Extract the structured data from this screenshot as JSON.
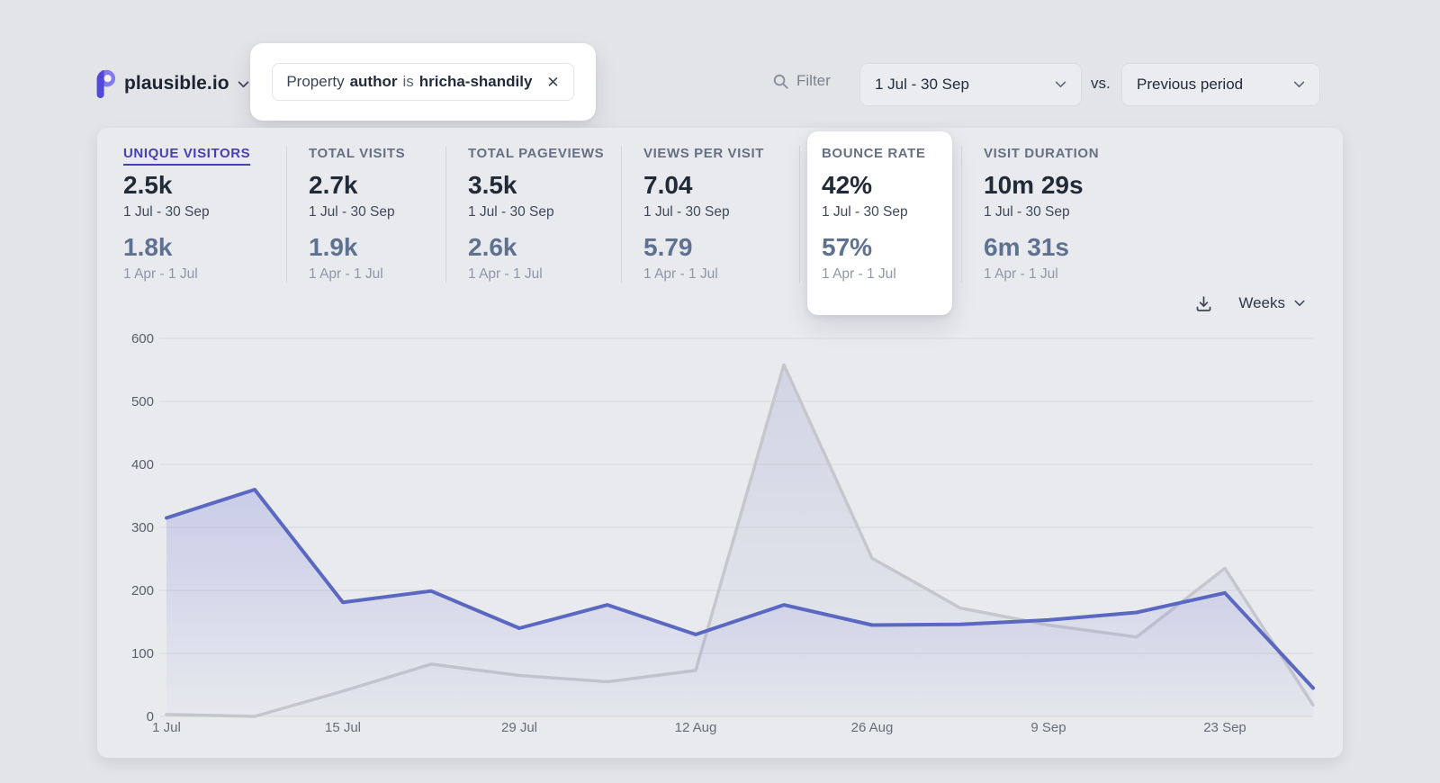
{
  "colors": {
    "accent": "#4740b5",
    "current_line": "#5b68c1",
    "previous_line": "#c6c7cd",
    "page_background": "#e3e4e8",
    "card_background": "#e9eaee"
  },
  "header": {
    "site_name": "plausible.io",
    "filter_chip": {
      "prefix": "Property",
      "property": "author",
      "operator": "is",
      "value": "hricha-shandily",
      "close": "✕"
    },
    "filter_button": "Filter",
    "date_range": "1 Jul - 30 Sep",
    "vs": "vs.",
    "comparison": "Previous period"
  },
  "stats": [
    {
      "label": "UNIQUE VISITORS",
      "value": "2.5k",
      "period": "1 Jul - 30 Sep",
      "prev_value": "1.8k",
      "prev_period": "1 Apr - 1 Jul"
    },
    {
      "label": "TOTAL VISITS",
      "value": "2.7k",
      "period": "1 Jul - 30 Sep",
      "prev_value": "1.9k",
      "prev_period": "1 Apr - 1 Jul"
    },
    {
      "label": "TOTAL PAGEVIEWS",
      "value": "3.5k",
      "period": "1 Jul - 30 Sep",
      "prev_value": "2.6k",
      "prev_period": "1 Apr - 1 Jul"
    },
    {
      "label": "VIEWS PER VISIT",
      "value": "7.04",
      "period": "1 Jul - 30 Sep",
      "prev_value": "5.79",
      "prev_period": "1 Apr - 1 Jul"
    },
    {
      "label": "BOUNCE RATE",
      "value": "42%",
      "period": "1 Jul - 30 Sep",
      "prev_value": "57%",
      "prev_period": "1 Apr - 1 Jul"
    },
    {
      "label": "VISIT DURATION",
      "value": "10m 29s",
      "period": "1 Jul - 30 Sep",
      "prev_value": "6m 31s",
      "prev_period": "1 Apr - 1 Jul"
    }
  ],
  "chart_controls": {
    "interval": "Weeks"
  },
  "chart_data": {
    "type": "line",
    "x": [
      "1 Jul",
      "8 Jul",
      "15 Jul",
      "22 Jul",
      "29 Jul",
      "5 Aug",
      "12 Aug",
      "19 Aug",
      "26 Aug",
      "2 Sep",
      "9 Sep",
      "16 Sep",
      "23 Sep",
      "30 Sep"
    ],
    "x_ticks_shown": [
      "1 Jul",
      "15 Jul",
      "29 Jul",
      "12 Aug",
      "26 Aug",
      "9 Sep",
      "23 Sep"
    ],
    "series": [
      {
        "name": "Unique visitors 1 Jul - 30 Sep (current period)",
        "color": "#5b68c1",
        "fill": "#7d88d8",
        "values": [
          315,
          360,
          181,
          199,
          140,
          177,
          130,
          177,
          145,
          146,
          153,
          165,
          196,
          45
        ]
      },
      {
        "name": "Unique visitors 1 Apr - 1 Jul (previous period)",
        "color": "#c6c7cd",
        "fill": "#9aa2cc",
        "values": [
          3,
          0,
          40,
          83,
          65,
          55,
          73,
          558,
          251,
          172,
          145,
          126,
          235,
          18
        ]
      }
    ],
    "ylim": [
      0,
      600
    ],
    "y_ticks": [
      0,
      100,
      200,
      300,
      400,
      500,
      600
    ],
    "grid": true,
    "legend_position": "none"
  }
}
